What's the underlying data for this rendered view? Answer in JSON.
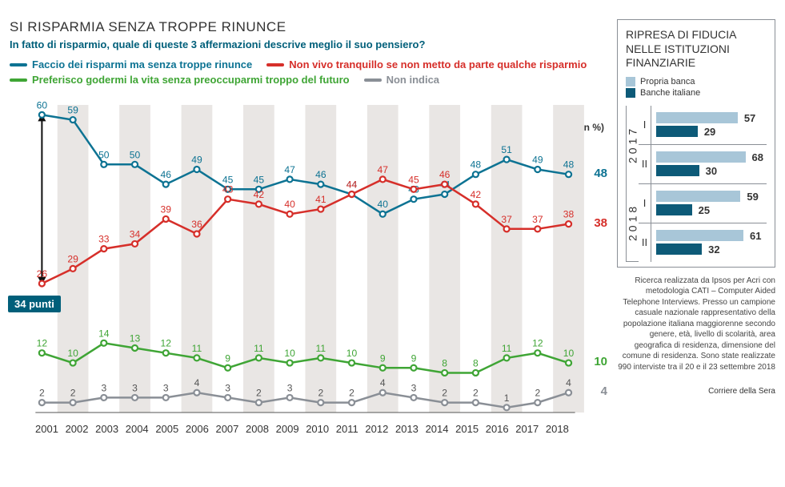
{
  "chart": {
    "title": "SI RISPARMIA SENZA TROPPE RINUNCE",
    "subtitle": "In fatto di risparmio, quale di queste 3 affermazioni descrive meglio il suo pensiero?",
    "unit": "(dati in %)",
    "annotation": "34 punti",
    "years": [
      "2001",
      "2002",
      "2003",
      "2004",
      "2005",
      "2006",
      "2007",
      "2008",
      "2009",
      "2010",
      "2011",
      "2012",
      "2013",
      "2014",
      "2015",
      "2016",
      "2017",
      "2018"
    ],
    "y_min": 0,
    "y_max": 62,
    "stripe_color": "#e9e6e4",
    "bg_color": "#ffffff",
    "series": [
      {
        "name": "Faccio dei risparmi ma senza troppe rinunce",
        "color": "#0d7393",
        "values": [
          60,
          59,
          50,
          50,
          46,
          49,
          45,
          45,
          47,
          46,
          44,
          40,
          43,
          44,
          48,
          51,
          49,
          48
        ],
        "end_label": "48"
      },
      {
        "name": "Non vivo tranquillo se non metto da parte qualche risparmio",
        "color": "#d62f2a",
        "values": [
          26,
          29,
          33,
          34,
          39,
          36,
          43,
          42,
          40,
          41,
          44,
          47,
          45,
          46,
          42,
          37,
          37,
          38
        ],
        "end_label": "38"
      },
      {
        "name": "Preferisco godermi la vita senza preoccuparmi troppo del futuro",
        "color": "#3fa535",
        "values": [
          12,
          10,
          14,
          13,
          12,
          11,
          9,
          11,
          10,
          11,
          10,
          9,
          9,
          8,
          8,
          11,
          12,
          10
        ],
        "end_label": "10"
      },
      {
        "name": "Non indica",
        "color": "#8a8f96",
        "values": [
          2,
          2,
          3,
          3,
          3,
          4,
          3,
          2,
          3,
          2,
          2,
          4,
          3,
          2,
          2,
          1,
          2,
          4
        ],
        "end_label": "4"
      }
    ],
    "value_font_size": 12,
    "line_width": 2.5,
    "marker_radius": 3.5
  },
  "sidebar": {
    "title": "RIPRESA DI FIDUCIA NELLE ISTITUZIONI FINANZIARIE",
    "legend": [
      {
        "label": "Propria banca",
        "color": "#a8c6d8"
      },
      {
        "label": "Banche italiane",
        "color": "#0d5a78"
      }
    ],
    "max": 75,
    "groups": [
      {
        "year": "2017",
        "halves": [
          {
            "label": "I",
            "bars": [
              {
                "v": 57,
                "color": "#a8c6d8"
              },
              {
                "v": 29,
                "color": "#0d5a78"
              }
            ]
          },
          {
            "label": "II",
            "bars": [
              {
                "v": 68,
                "color": "#a8c6d8"
              },
              {
                "v": 30,
                "color": "#0d5a78"
              }
            ]
          }
        ]
      },
      {
        "year": "2018",
        "halves": [
          {
            "label": "I",
            "bars": [
              {
                "v": 59,
                "color": "#a8c6d8"
              },
              {
                "v": 25,
                "color": "#0d5a78"
              }
            ]
          },
          {
            "label": "II",
            "bars": [
              {
                "v": 61,
                "color": "#a8c6d8"
              },
              {
                "v": 32,
                "color": "#0d5a78"
              }
            ]
          }
        ]
      }
    ]
  },
  "footnote": "Ricerca realizzata da Ipsos per Acri con metodologia CATI – Computer Aided Telephone Interviews. Presso un campione casuale nazionale rappresentativo della popolazione italiana maggiorenne secondo genere, età, livello di scolarità, area geografica di residenza, dimensione del comune di residenza. Sono state realizzate 990 interviste tra il 20 e il 23 settembre 2018",
  "source": "Corriere della Sera"
}
